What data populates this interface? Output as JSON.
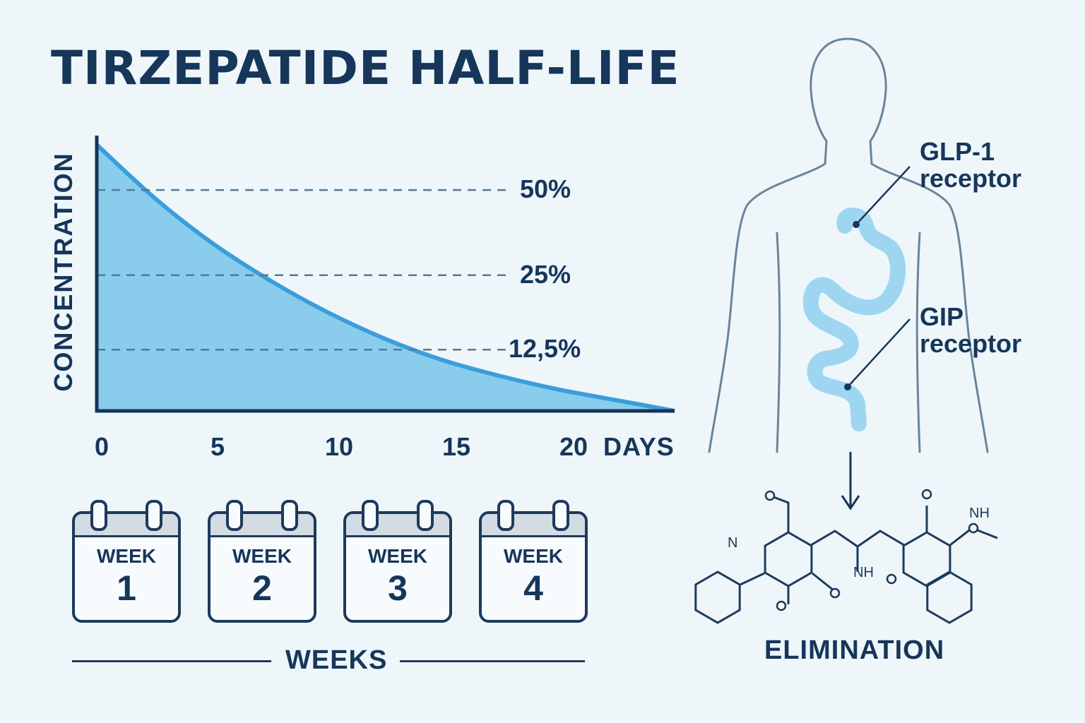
{
  "title": "TIRZEPATIDE HALF-LIFE",
  "chart_data": {
    "type": "area",
    "ylabel": "CONCENTRATION",
    "xlabel": "DAYS",
    "x_ticks": [
      "0",
      "5",
      "10",
      "15",
      "20"
    ],
    "xlim": [
      0,
      25
    ],
    "ylim": [
      0,
      100
    ],
    "x": [
      0,
      2.5,
      5,
      7.5,
      10,
      12.5,
      15,
      17.5,
      20,
      22.5,
      25
    ],
    "y": [
      100,
      80,
      63,
      49,
      37,
      27,
      19,
      13,
      8,
      4,
      0
    ],
    "reference_lines": [
      {
        "label": "50%",
        "value": 83
      },
      {
        "label": "25%",
        "value": 51
      },
      {
        "label": "12,5%",
        "value": 23
      }
    ],
    "colors": {
      "fill": "#7ec8ea",
      "line": "#3a9edb",
      "ref": "#557a94",
      "axis": "#163556"
    }
  },
  "calendars": [
    {
      "word": "WEEK",
      "number": "1"
    },
    {
      "word": "WEEK",
      "number": "2"
    },
    {
      "word": "WEEK",
      "number": "3"
    },
    {
      "word": "WEEK",
      "number": "4"
    }
  ],
  "weeks_label": "WEEKS",
  "body": {
    "receptors": [
      {
        "line1": "GLP-1",
        "line2": "receptor"
      },
      {
        "line1": "GIP",
        "line2": "receptor"
      }
    ],
    "colors": {
      "outline": "#6b8499",
      "organ": "#8fd0ee"
    }
  },
  "molecule": {
    "atom_labels": [
      "N",
      "NH",
      "NH",
      "O"
    ]
  },
  "elimination_label": "ELIMINATION"
}
